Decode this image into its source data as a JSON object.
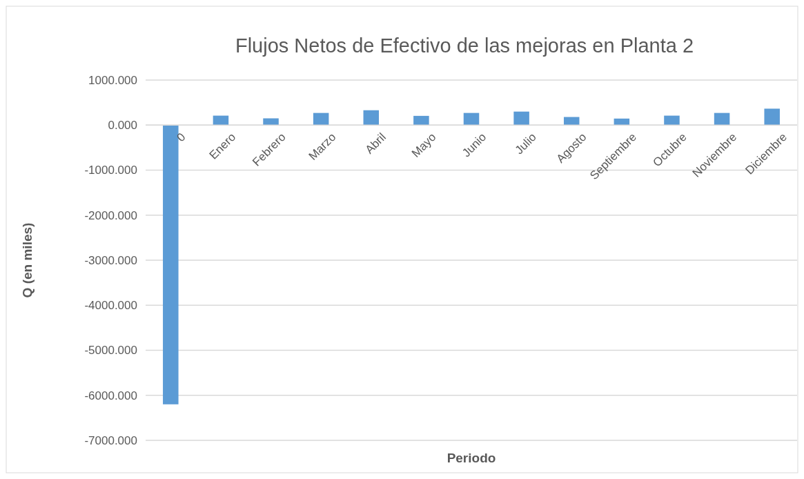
{
  "chart_data": {
    "type": "bar",
    "title": "Flujos Netos de Efectivo de las mejoras en Planta 2",
    "xlabel": "Periodo",
    "ylabel": "Q (en miles)",
    "categories": [
      "0",
      "Enero",
      "Febrero",
      "Marzo",
      "Abril",
      "Mayo",
      "Junio",
      "Julio",
      "Agosto",
      "Septiembre",
      "Octubre",
      "Noviembre",
      "Diciembre"
    ],
    "values": [
      -6200,
      210,
      150,
      270,
      330,
      205,
      270,
      300,
      180,
      145,
      210,
      270,
      365
    ],
    "color": "#5b9bd5",
    "ylim": [
      -7000,
      1000
    ],
    "yticks": [
      {
        "value": -7000,
        "label": "-7000.000"
      },
      {
        "value": -6000,
        "label": "-6000.000"
      },
      {
        "value": -5000,
        "label": "-5000.000"
      },
      {
        "value": -4000,
        "label": "-4000.000"
      },
      {
        "value": -3000,
        "label": "-3000.000"
      },
      {
        "value": -2000,
        "label": "-2000.000"
      },
      {
        "value": -1000,
        "label": "-1000.000"
      },
      {
        "value": 0,
        "label": "0.000"
      },
      {
        "value": 1000,
        "label": "1000.000"
      }
    ],
    "grid": "y"
  }
}
